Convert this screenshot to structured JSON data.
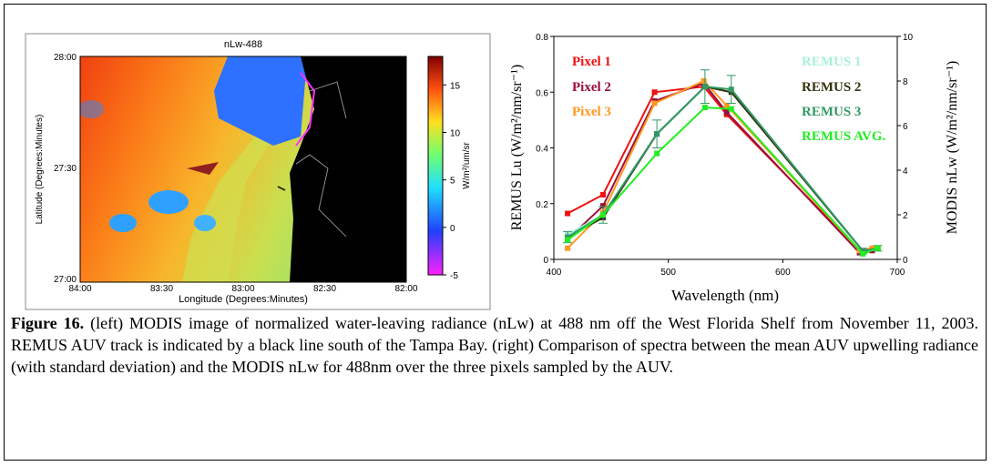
{
  "chart_data": {
    "type": "line",
    "x_label": "Wavelength (nm)",
    "y_label": "REMUS Lu (W/m²/nm/sr⁻¹)",
    "y2_label": "MODIS nLw (W/m²/nm/sr⁻¹)",
    "xlim": [
      400,
      700
    ],
    "xticks": [
      400,
      500,
      600,
      700
    ],
    "ylim": [
      0,
      0.8
    ],
    "yticks": [
      0,
      0.2,
      0.4,
      0.6,
      0.8
    ],
    "y2lim": [
      0,
      10
    ],
    "y2ticks": [
      0,
      2,
      4,
      6,
      8,
      10
    ],
    "series": [
      {
        "name": "Pixel 1",
        "color": "#ee1111",
        "axis": "y2",
        "x": [
          412,
          443,
          488,
          531,
          551,
          667,
          678
        ],
        "values": [
          2.06,
          2.9,
          7.5,
          7.75,
          6.5,
          0.4,
          0.4
        ]
      },
      {
        "name": "Pixel 2",
        "color": "#99103a",
        "axis": "y2",
        "x": [
          412,
          443,
          488,
          531,
          551,
          667,
          678
        ],
        "values": [
          0.9,
          2.4,
          7.1,
          7.9,
          6.6,
          0.3,
          0.4
        ]
      },
      {
        "name": "Pixel 3",
        "color": "#ff9922",
        "axis": "y2",
        "x": [
          412,
          443,
          488,
          531,
          551,
          667,
          678
        ],
        "values": [
          0.5,
          2.1,
          7.0,
          8.0,
          6.9,
          0.4,
          0.5
        ]
      },
      {
        "name": "REMUS 1",
        "color": "#a8f0d8",
        "x": [
          412,
          443,
          490,
          532,
          555,
          670,
          683
        ],
        "values": [
          0.09,
          0.16,
          0.45,
          0.62,
          0.6,
          0.03,
          0.04
        ]
      },
      {
        "name": "REMUS 2",
        "color": "#333311",
        "x": [
          412,
          443,
          490,
          532,
          555,
          670,
          683
        ],
        "values": [
          0.08,
          0.15,
          0.45,
          0.62,
          0.6,
          0.03,
          0.04
        ]
      },
      {
        "name": "REMUS 3",
        "color": "#339966",
        "x": [
          412,
          443,
          490,
          532,
          555,
          670,
          683
        ],
        "values": [
          0.08,
          0.16,
          0.45,
          0.62,
          0.61,
          0.03,
          0.04
        ],
        "errors": [
          0.02,
          0.03,
          0.05,
          0.06,
          0.05,
          0.01,
          0.01
        ]
      },
      {
        "name": "REMUS AVG.",
        "color": "#22ee22",
        "x": [
          412,
          443,
          490,
          532,
          555,
          670,
          683
        ],
        "values": [
          0.07,
          0.16,
          0.38,
          0.545,
          0.54,
          0.02,
          0.04
        ]
      }
    ]
  },
  "map": {
    "title": "nLw-488",
    "x_label": "Longitude (Degrees:Minutes)",
    "y_label": "Latitude (Degrees:Minutes)",
    "x_ticks": [
      "84:00",
      "83:30",
      "83:00",
      "82:30",
      "82:00"
    ],
    "y_ticks": [
      "28:00",
      "27:30",
      "27:00"
    ],
    "colorbar": {
      "label": "W/m²/um/sr",
      "lim": [
        -5,
        18
      ],
      "ticks": [
        -5,
        0,
        5,
        10,
        15
      ]
    }
  },
  "caption": {
    "label": "Figure 16.",
    "text": "(left) MODIS image of normalized water-leaving radiance (nLw) at 488 nm off the West Florida Shelf from November 11, 2003.  REMUS AUV track is indicated by a black line south of the Tampa Bay.  (right) Comparison of spectra between the mean AUV upwelling radiance (with standard deviation) and the MODIS nLw for 488nm over the three pixels sampled by the AUV."
  }
}
